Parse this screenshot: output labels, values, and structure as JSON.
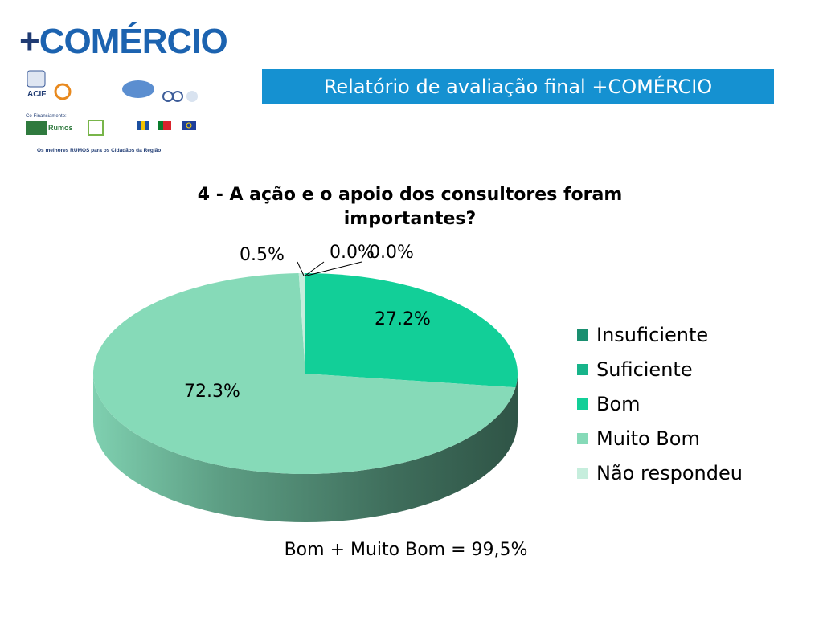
{
  "header": {
    "logo_plus": "+",
    "logo_word": "COMÉRCIO",
    "banner_title": "Relatório de avaliação final +COMÉRCIO"
  },
  "logos": {
    "acif": "ACIF",
    "rumos": "Rumos",
    "cofinanciamento": "Co-Financiamento:",
    "tagline": "Os melhores RUMOS para os Cidadãos da Região"
  },
  "chart_data": {
    "type": "pie",
    "title": "4 - A ação e o apoio dos consultores foram importantes?",
    "categories": [
      "Insuficiente",
      "Suficiente",
      "Bom",
      "Muito Bom",
      "Não respondeu"
    ],
    "values": [
      0.0,
      0.0,
      27.2,
      72.3,
      0.5
    ],
    "data_labels": [
      "0.0%",
      "0.0%",
      "27.2%",
      "72.3%",
      "0.5%"
    ],
    "colors": [
      "#1a8f70",
      "#17b48a",
      "#12cf98",
      "#86dab8",
      "#c6eedd"
    ],
    "legend_position": "right",
    "style": "3d"
  },
  "footnote": "Bom + Muito Bom = 99,5%"
}
